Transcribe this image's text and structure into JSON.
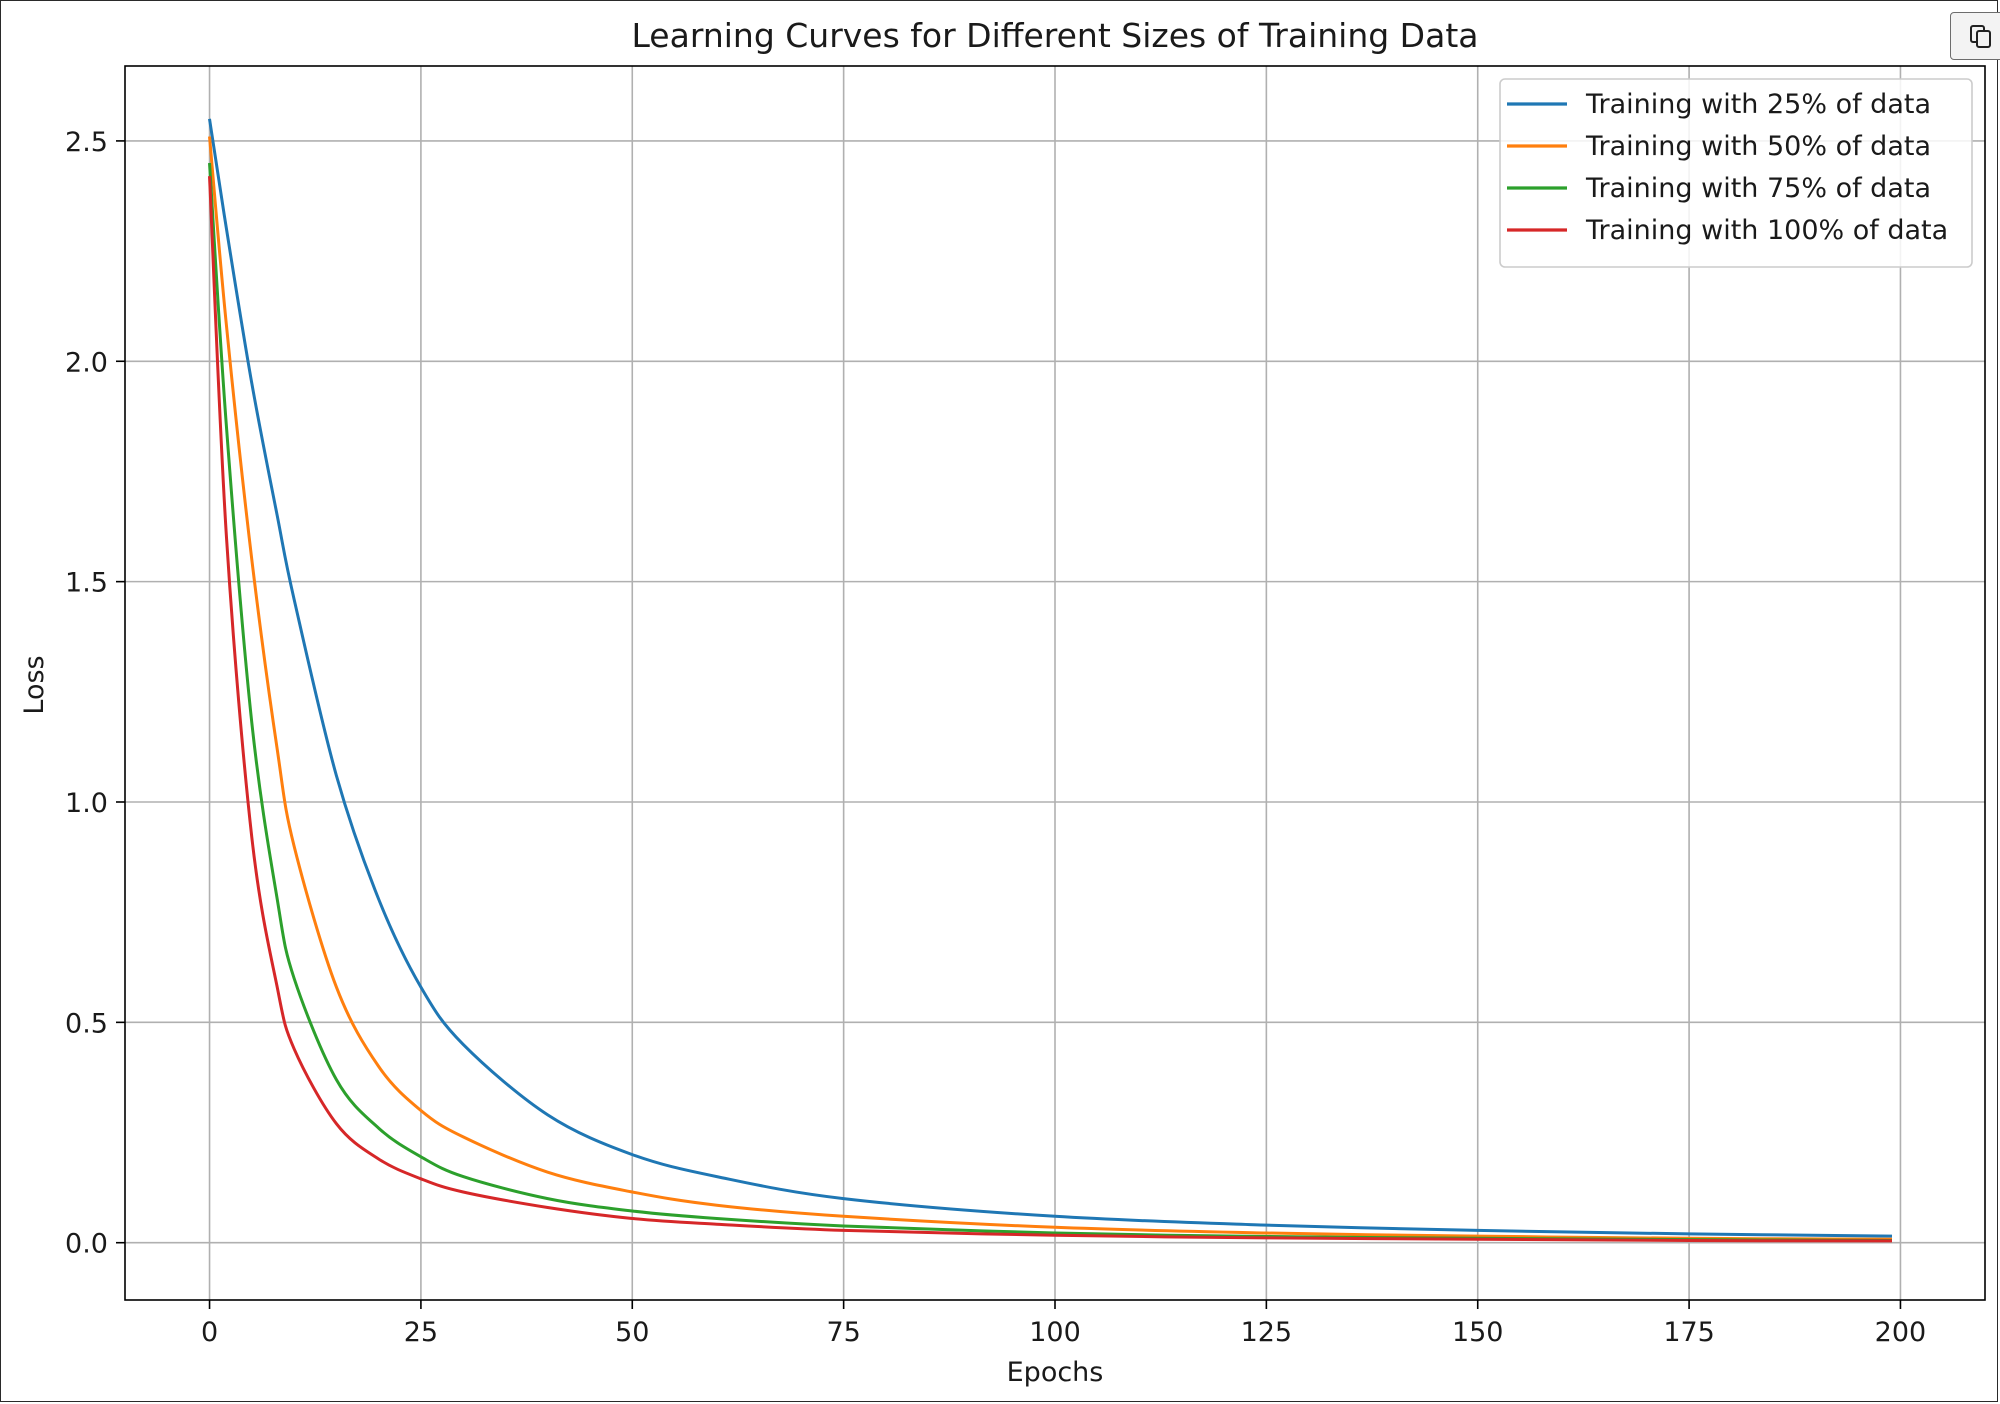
{
  "chart_data": {
    "type": "line",
    "title": "Learning Curves for Different Sizes of Training Data",
    "xlabel": "Epochs",
    "ylabel": "Loss",
    "xlim": [
      -10,
      210
    ],
    "ylim": [
      -0.13,
      2.67
    ],
    "xticks": [
      0,
      25,
      50,
      75,
      100,
      125,
      150,
      175,
      200
    ],
    "xtick_labels": [
      "0",
      "25",
      "50",
      "75",
      "100",
      "125",
      "150",
      "175",
      "200"
    ],
    "yticks": [
      0.0,
      0.5,
      1.0,
      1.5,
      2.0,
      2.5
    ],
    "ytick_labels": [
      "0.0",
      "0.5",
      "1.0",
      "1.5",
      "2.0",
      "2.5"
    ],
    "grid": true,
    "legend_position": "top-right",
    "series": [
      {
        "name": "Training with 25% of data",
        "color": "#1f77b4",
        "x": [
          0,
          2,
          5,
          8,
          10,
          15,
          20,
          25,
          30,
          40,
          50,
          60,
          75,
          100,
          125,
          150,
          175,
          199
        ],
        "y": [
          2.55,
          2.3,
          1.95,
          1.65,
          1.46,
          1.06,
          0.78,
          0.58,
          0.45,
          0.29,
          0.2,
          0.15,
          0.1,
          0.06,
          0.04,
          0.028,
          0.02,
          0.015
        ]
      },
      {
        "name": "Training with 50% of data",
        "color": "#ff7f0e",
        "x": [
          0,
          2,
          5,
          8,
          10,
          15,
          20,
          25,
          30,
          40,
          50,
          60,
          75,
          100,
          125,
          150,
          175,
          199
        ],
        "y": [
          2.51,
          2.08,
          1.55,
          1.12,
          0.9,
          0.58,
          0.4,
          0.3,
          0.24,
          0.16,
          0.115,
          0.085,
          0.06,
          0.035,
          0.022,
          0.015,
          0.01,
          0.008
        ]
      },
      {
        "name": "Training with 75% of data",
        "color": "#2ca02c",
        "x": [
          0,
          2,
          5,
          8,
          10,
          15,
          20,
          25,
          30,
          40,
          50,
          60,
          75,
          100,
          125,
          150,
          175,
          199
        ],
        "y": [
          2.45,
          1.85,
          1.18,
          0.78,
          0.6,
          0.37,
          0.26,
          0.195,
          0.15,
          0.1,
          0.072,
          0.055,
          0.038,
          0.022,
          0.014,
          0.01,
          0.007,
          0.005
        ]
      },
      {
        "name": "Training with 100% of data",
        "color": "#d62728",
        "x": [
          0,
          2,
          5,
          8,
          10,
          15,
          20,
          25,
          30,
          40,
          50,
          60,
          75,
          100,
          125,
          150,
          175,
          199
        ],
        "y": [
          2.42,
          1.6,
          0.92,
          0.58,
          0.44,
          0.27,
          0.19,
          0.145,
          0.115,
          0.08,
          0.055,
          0.042,
          0.028,
          0.017,
          0.011,
          0.008,
          0.005,
          0.004
        ]
      }
    ]
  },
  "toolbar": {
    "copy_icon": "copy-icon"
  }
}
